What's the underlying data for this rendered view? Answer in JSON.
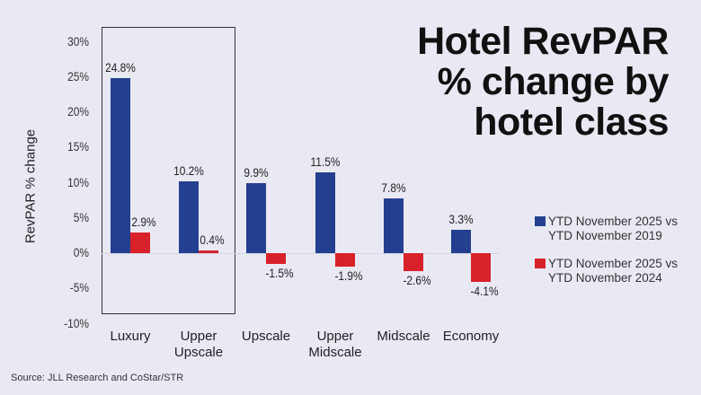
{
  "title_lines": [
    "Hotel RevPAR",
    "% change by",
    "hotel class"
  ],
  "source": "Source: JLL Research and CoStar/STR",
  "colors": {
    "series1": "#233f8f",
    "series2": "#d8222b",
    "background": "#e9e9f3"
  },
  "chart_data": {
    "type": "bar",
    "title": "Hotel RevPAR % change by hotel class",
    "xlabel": "",
    "ylabel": "RevPAR % change",
    "ylim": [
      -10,
      30
    ],
    "yticks": [
      "30%",
      "25%",
      "20%",
      "15%",
      "10%",
      "5%",
      "0%",
      "-5%",
      "-10%"
    ],
    "categories": [
      "Luxury",
      "Upper Upscale",
      "Upscale",
      "Upper Midscale",
      "Midscale",
      "Economy"
    ],
    "series": [
      {
        "name": "YTD November 2025 vs YTD November 2019",
        "values": [
          24.8,
          10.2,
          9.9,
          11.5,
          7.8,
          3.3
        ],
        "labels": [
          "24.8%",
          "10.2%",
          "9.9%",
          "11.5%",
          "7.8%",
          "3.3%"
        ]
      },
      {
        "name": "YTD November 2025 vs YTD November 2024",
        "values": [
          2.9,
          0.4,
          -1.5,
          -1.9,
          -2.6,
          -4.1
        ],
        "labels": [
          "2.9%",
          "0.4%",
          "-1.5%",
          "-1.9%",
          "-2.6%",
          "-4.1%"
        ]
      }
    ],
    "legend_position": "right",
    "grid": false,
    "highlight_box": [
      "Luxury",
      "Upper Upscale"
    ]
  },
  "category_lines": [
    [
      "Luxury"
    ],
    [
      "Upper",
      "Upscale"
    ],
    [
      "Upscale"
    ],
    [
      "Upper",
      "Midscale"
    ],
    [
      "Midscale"
    ],
    [
      "Economy"
    ]
  ],
  "legend": [
    {
      "line1": "YTD November 2025 vs",
      "line2": "YTD November 2019"
    },
    {
      "line1": "YTD November 2025 vs",
      "line2": "YTD November 2024"
    }
  ]
}
